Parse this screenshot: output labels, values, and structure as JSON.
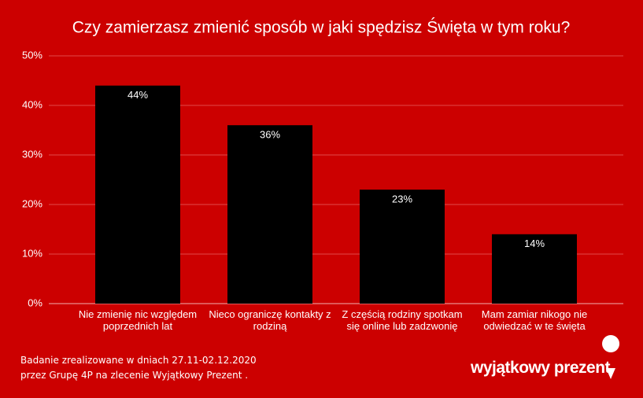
{
  "chart_data": {
    "type": "bar",
    "title": "Czy zamierzasz zmienić sposób w jaki spędzisz Święta w tym roku?",
    "categories": [
      "Nie zmienię nic względem poprzednich lat",
      "Nieco ograniczę kontakty z rodziną",
      "Z częścią rodziny spotkam się online lub zadzwonię",
      "Mam zamiar nikogo nie odwiedzać w te święta"
    ],
    "values": [
      44,
      36,
      23,
      14
    ],
    "value_labels": [
      "44%",
      "36%",
      "23%",
      "14%"
    ],
    "color": "#000000",
    "ylim": [
      0,
      50
    ],
    "yticks": [
      {
        "value": 0,
        "label": "0%"
      },
      {
        "value": 10,
        "label": "10%"
      },
      {
        "value": 20,
        "label": "20%"
      },
      {
        "value": 30,
        "label": "30%"
      },
      {
        "value": 40,
        "label": "40%"
      },
      {
        "value": 50,
        "label": "50%"
      }
    ],
    "grid": true,
    "notes": [
      "Badanie zrealizowane w dniach 27.11-02.12.2020",
      "przez Grupę 4P na zlecenie Wyjątkowy Prezent ."
    ],
    "logo": "wyjątkowy prezent"
  }
}
